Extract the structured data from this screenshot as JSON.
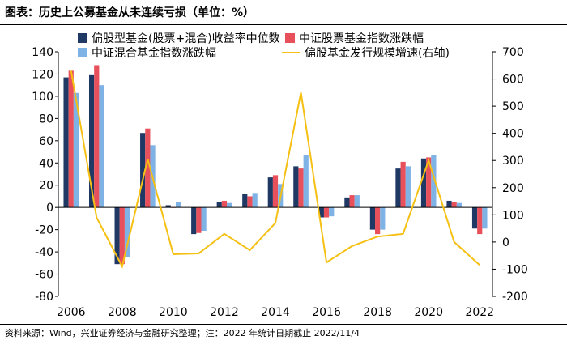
{
  "title": "图表：历史上公募基金从未连续亏损（单位：%）",
  "source": "资料来源：Wind，兴业证券经济与金融研究整理；注：2022 年统计日期截止 2022/11/4",
  "colors": {
    "series1": "#1F3864",
    "series2": "#E8505B",
    "series3": "#7FB2E5",
    "series4": "#F5C013"
  },
  "chart_data": {
    "type": "bar",
    "x": [
      "2006",
      "2007",
      "2008",
      "2009",
      "2010",
      "2011",
      "2012",
      "2013",
      "2014",
      "2015",
      "2016",
      "2017",
      "2018",
      "2019",
      "2020",
      "2021",
      "2022"
    ],
    "x_tick_labels": [
      "2006",
      "2008",
      "2010",
      "2012",
      "2014",
      "2016",
      "2018",
      "2020",
      "2022"
    ],
    "ylim_left": [
      -80,
      140
    ],
    "yticks_left": [
      -80,
      -60,
      -40,
      -20,
      0,
      20,
      40,
      60,
      80,
      100,
      120,
      140
    ],
    "ylim_right": [
      -200,
      700
    ],
    "yticks_right": [
      -200,
      -100,
      0,
      100,
      200,
      300,
      400,
      500,
      600,
      700
    ],
    "grid": false,
    "legend_position": "top",
    "series": [
      {
        "name": "偏股型基金(股票+混合)收益率中位数",
        "type": "bar",
        "axis": "left",
        "values": [
          117,
          119,
          -51,
          67,
          2,
          -24,
          5,
          12,
          27,
          37,
          -9,
          9,
          -20,
          35,
          44,
          6,
          -19
        ]
      },
      {
        "name": "中证股票基金指数涨跌幅",
        "type": "bar",
        "axis": "left",
        "values": [
          123,
          128,
          -51,
          71,
          0,
          -23,
          6,
          10,
          29,
          35,
          -9,
          11,
          -24,
          41,
          45,
          5,
          -24
        ]
      },
      {
        "name": "中证混合基金指数涨跌幅",
        "type": "bar",
        "axis": "left",
        "values": [
          103,
          110,
          -45,
          56,
          5,
          -21,
          4,
          13,
          21,
          47,
          -8,
          11,
          -20,
          37,
          47,
          4,
          -19
        ]
      },
      {
        "name": "偏股基金发行规模增速(右轴)",
        "type": "line",
        "axis": "right",
        "values": [
          630,
          90,
          -90,
          305,
          -45,
          -42,
          30,
          -30,
          70,
          550,
          -75,
          -15,
          20,
          30,
          300,
          0,
          -85
        ]
      }
    ]
  }
}
